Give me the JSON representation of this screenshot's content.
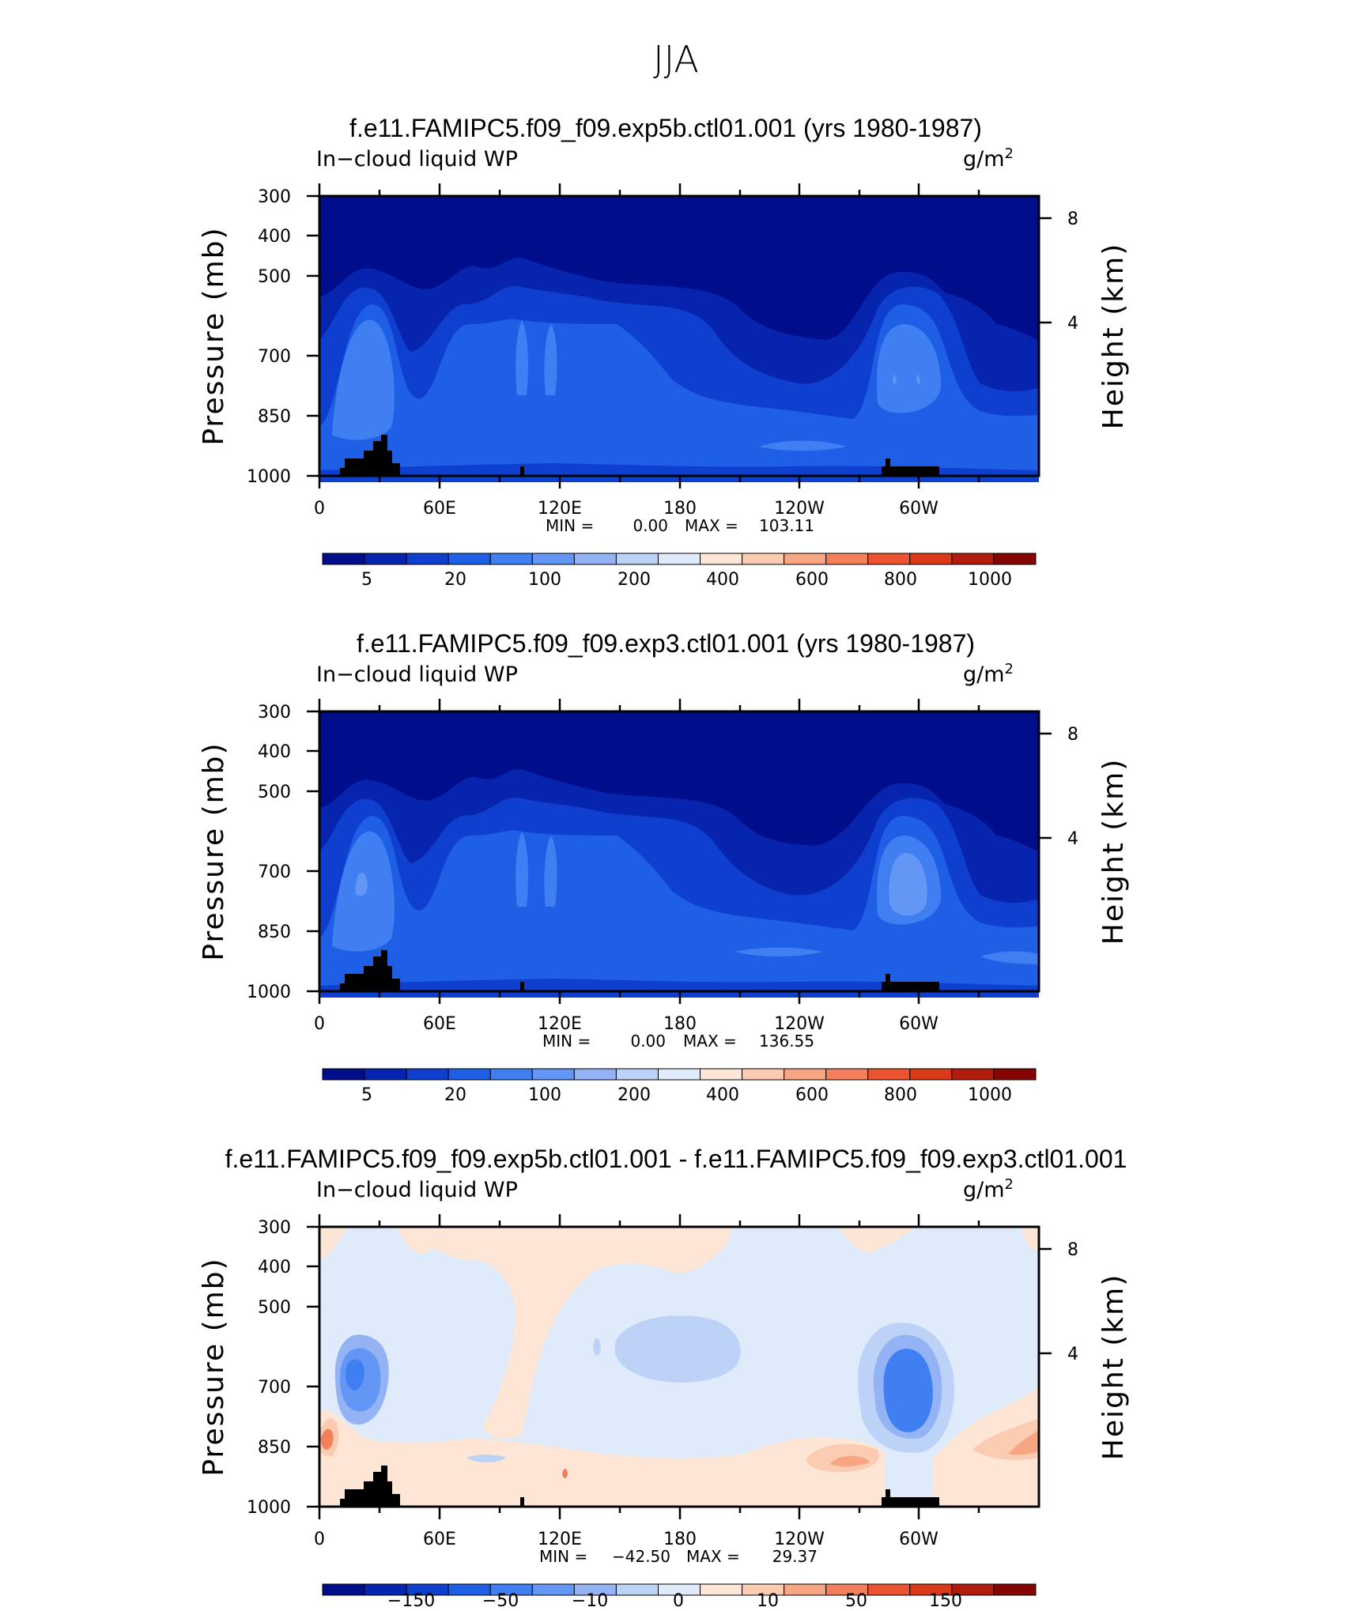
{
  "page_title": "JJA",
  "chart_data": [
    {
      "type": "heatmap",
      "title": "f.e11.FAMIPC5.f09_f09.exp5b.ctl01.001 (yrs 1980-1987)",
      "left_label": "In−cloud liquid WP",
      "units": "g/m",
      "units_sup": "2",
      "ylabel": "Pressure (mb)",
      "ylabel_right": "Height (km)",
      "yticks": [
        "300",
        "400",
        "500",
        "700",
        "850",
        "1000"
      ],
      "yticks_right": [
        "8",
        "4"
      ],
      "xticks": [
        "0",
        "60E",
        "120E",
        "180",
        "120W",
        "60W"
      ],
      "stats": {
        "min_label": "MIN =",
        "min": "0.00",
        "max_label": "MAX =",
        "max": "103.11"
      },
      "colorbar_labels": [
        "5",
        "20",
        "100",
        "200",
        "400",
        "600",
        "800",
        "1000"
      ],
      "colors": [
        "#000e8c",
        "#0624ad",
        "#0e3fcf",
        "#1f5fe6",
        "#3f7ff2",
        "#6496f5",
        "#93b3f5",
        "#bcd2f7",
        "#dfeafb",
        "#fde6d6",
        "#fbcbb2",
        "#f8a584",
        "#f37f5c",
        "#ec5330",
        "#d93a18",
        "#b11c0c",
        "#850505"
      ],
      "ylim": [
        1000,
        300
      ],
      "xlim": [
        0,
        360
      ]
    },
    {
      "type": "heatmap",
      "title": "f.e11.FAMIPC5.f09_f09.exp3.ctl01.001 (yrs 1980-1987)",
      "left_label": "In−cloud liquid WP",
      "units": "g/m",
      "units_sup": "2",
      "ylabel": "Pressure (mb)",
      "ylabel_right": "Height (km)",
      "yticks": [
        "300",
        "400",
        "500",
        "700",
        "850",
        "1000"
      ],
      "yticks_right": [
        "8",
        "4"
      ],
      "xticks": [
        "0",
        "60E",
        "120E",
        "180",
        "120W",
        "60W"
      ],
      "stats": {
        "min_label": "MIN =",
        "min": "0.00",
        "max_label": "MAX =",
        "max": "136.55"
      },
      "colorbar_labels": [
        "5",
        "20",
        "100",
        "200",
        "400",
        "600",
        "800",
        "1000"
      ],
      "colors": [
        "#000e8c",
        "#0624ad",
        "#0e3fcf",
        "#1f5fe6",
        "#3f7ff2",
        "#6496f5",
        "#93b3f5",
        "#bcd2f7",
        "#dfeafb",
        "#fde6d6",
        "#fbcbb2",
        "#f8a584",
        "#f37f5c",
        "#ec5330",
        "#d93a18",
        "#b11c0c",
        "#850505"
      ],
      "ylim": [
        1000,
        300
      ],
      "xlim": [
        0,
        360
      ]
    },
    {
      "type": "heatmap",
      "title": "f.e11.FAMIPC5.f09_f09.exp5b.ctl01.001 - f.e11.FAMIPC5.f09_f09.exp3.ctl01.001",
      "left_label": "In−cloud liquid WP",
      "units": "g/m",
      "units_sup": "2",
      "ylabel": "Pressure (mb)",
      "ylabel_right": "Height (km)",
      "yticks": [
        "300",
        "400",
        "500",
        "700",
        "850",
        "1000"
      ],
      "yticks_right": [
        "8",
        "4"
      ],
      "xticks": [
        "0",
        "60E",
        "120E",
        "180",
        "120W",
        "60W"
      ],
      "stats": {
        "min_label": "MIN =",
        "min": "−42.50",
        "max_label": "MAX =",
        "max": "29.37"
      },
      "colorbar_labels": [
        "−150",
        "−50",
        "−10",
        "0",
        "10",
        "50",
        "150"
      ],
      "colors": [
        "#000e8c",
        "#0624ad",
        "#0e3fcf",
        "#1f5fe6",
        "#3f7ff2",
        "#6496f5",
        "#93b3f5",
        "#bcd2f7",
        "#dfeafb",
        "#fde6d6",
        "#fbcbb2",
        "#f8a584",
        "#f37f5c",
        "#ec5330",
        "#d93a18",
        "#b11c0c",
        "#850505"
      ],
      "ylim": [
        1000,
        300
      ],
      "xlim": [
        0,
        360
      ]
    }
  ]
}
